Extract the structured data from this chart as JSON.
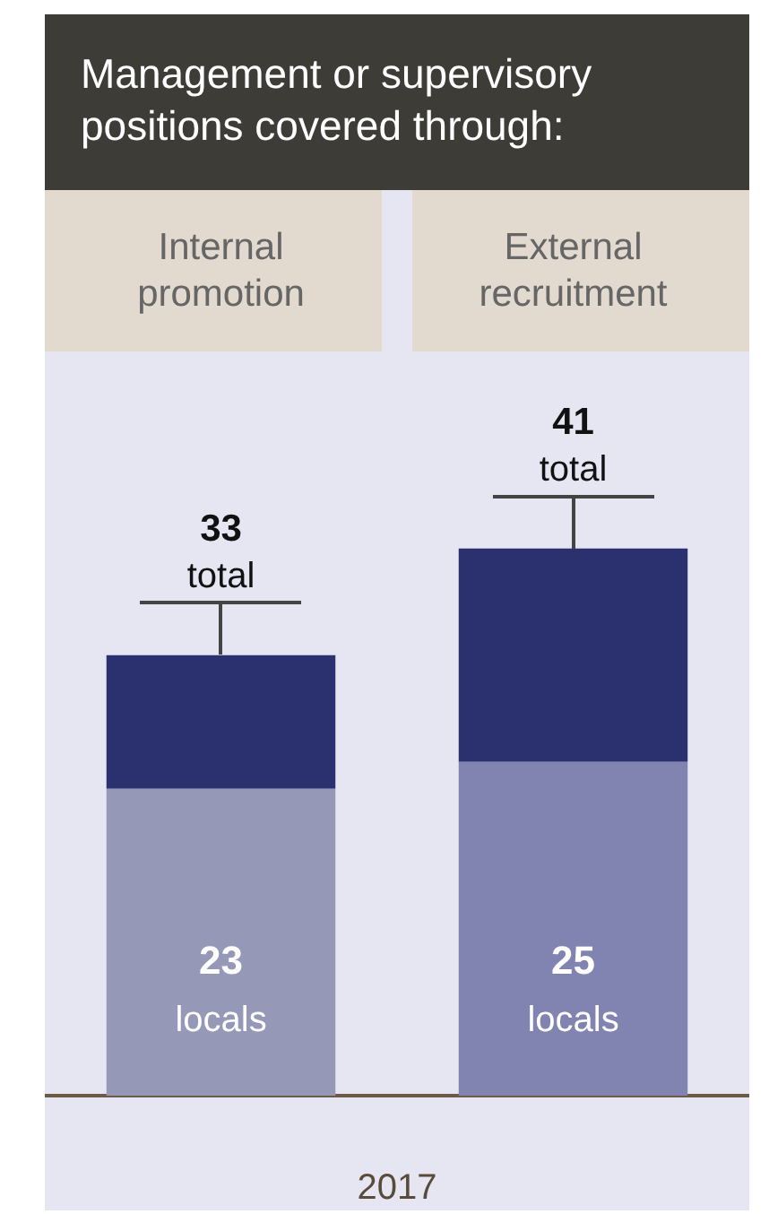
{
  "chart_data": {
    "type": "bar",
    "title": "Management or supervisory positions covered through:",
    "categories": [
      "Internal promotion",
      "External recruitment"
    ],
    "xlabel": "2017",
    "stacked": true,
    "legend": false,
    "grid": false,
    "series": [
      {
        "name": "locals",
        "colors": [
          "#9598b6",
          "#8184b0"
        ],
        "values": [
          23,
          25
        ],
        "value_labels": [
          "23",
          "25"
        ]
      },
      {
        "color": "#2b316f",
        "values": [
          10,
          16
        ]
      }
    ],
    "totals": [
      "33 total",
      "41 total"
    ]
  }
}
